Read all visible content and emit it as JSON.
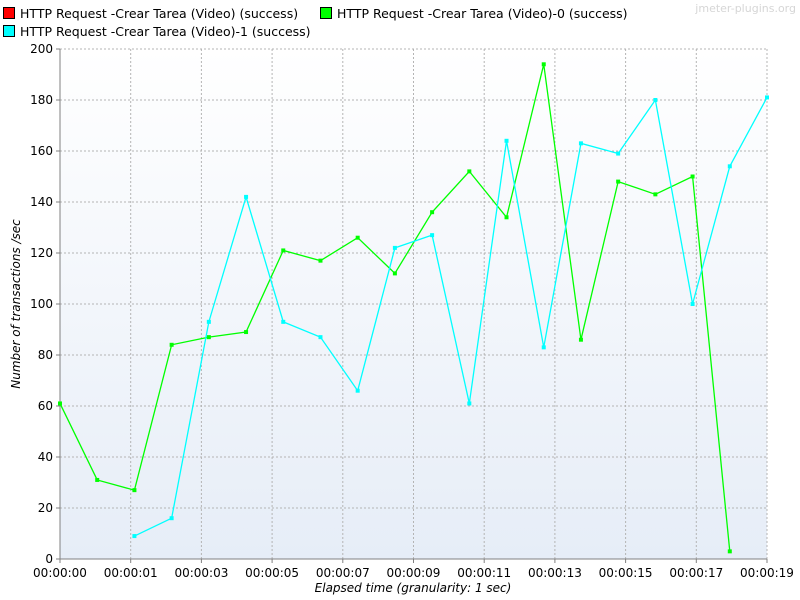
{
  "watermark": "jmeter-plugins.org",
  "chart_data": {
    "type": "line",
    "xlabel": "Elapsed time (granularity: 1 sec)",
    "ylabel": "Number of transactions /sec",
    "ylim": [
      0,
      200
    ],
    "yticks": [
      0,
      20,
      40,
      60,
      80,
      100,
      120,
      140,
      160,
      180,
      200
    ],
    "xlim": [
      0,
      19
    ],
    "xticks": [
      0,
      1.9,
      3.8,
      5.7,
      7.6,
      9.5,
      11.4,
      13.3,
      15.2,
      17.1,
      19
    ],
    "xtick_labels": [
      "00:00:00",
      "00:00:01",
      "00:00:03",
      "00:00:05",
      "00:00:07",
      "00:00:09",
      "00:00:11",
      "00:00:13",
      "00:00:15",
      "00:00:17",
      "00:00:19"
    ],
    "grid": true,
    "legend_position": "top",
    "series": [
      {
        "name": "HTTP Request -Crear Tarea  (Video) (success)",
        "color": "#ff0000",
        "x": [],
        "values": []
      },
      {
        "name": "HTTP Request -Crear Tarea  (Video)-0 (success)",
        "color": "#00ff00",
        "x": [
          0,
          1,
          2,
          3,
          4,
          5,
          6,
          7,
          8,
          9,
          10,
          11,
          12,
          13,
          14,
          15,
          16,
          17,
          18
        ],
        "values": [
          61,
          31,
          27,
          84,
          87,
          89,
          121,
          117,
          126,
          112,
          136,
          152,
          134,
          194,
          86,
          148,
          143,
          150,
          3
        ]
      },
      {
        "name": "HTTP Request -Crear Tarea  (Video)-1 (success)",
        "color": "#00ffff",
        "x": [
          2,
          3,
          4,
          5,
          6,
          7,
          8,
          9,
          10,
          11,
          12,
          13,
          14,
          15,
          16,
          17,
          18,
          19
        ],
        "values": [
          9,
          16,
          93,
          142,
          93,
          87,
          66,
          122,
          127,
          61,
          164,
          83,
          163,
          159,
          180,
          100,
          154,
          181
        ]
      }
    ]
  }
}
